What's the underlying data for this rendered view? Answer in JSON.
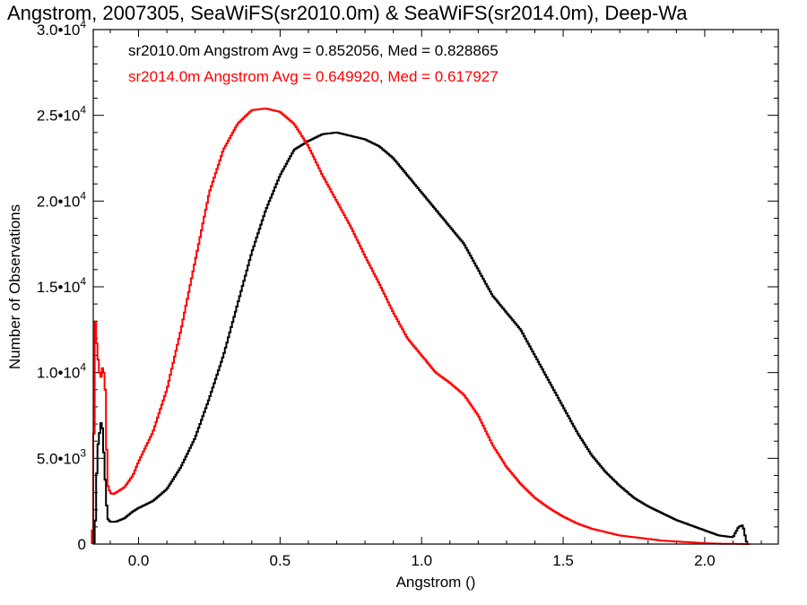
{
  "chart_data": {
    "type": "line",
    "title": "Angstrom, 2007305, SeaWiFS(sr2010.0m) & SeaWiFS(sr2014.0m), Deep-Wa",
    "xlabel": "Angstrom ()",
    "ylabel": "Number of Observations",
    "xlim": [
      -0.16,
      2.26
    ],
    "ylim": [
      0,
      30000
    ],
    "x_ticks": [
      {
        "value": 0.0,
        "label": "0.0"
      },
      {
        "value": 0.5,
        "label": "0.5"
      },
      {
        "value": 1.0,
        "label": "1.0"
      },
      {
        "value": 1.5,
        "label": "1.5"
      },
      {
        "value": 2.0,
        "label": "2.0"
      }
    ],
    "y_ticks": [
      {
        "value": 0,
        "mant": "0",
        "exp": ""
      },
      {
        "value": 5000,
        "mant": "5.0•10",
        "exp": "3"
      },
      {
        "value": 10000,
        "mant": "1.0•10",
        "exp": "4"
      },
      {
        "value": 15000,
        "mant": "1.5•10",
        "exp": "4"
      },
      {
        "value": 20000,
        "mant": "2.0•10",
        "exp": "4"
      },
      {
        "value": 25000,
        "mant": "2.5•10",
        "exp": "4"
      },
      {
        "value": 30000,
        "mant": "3.0•10",
        "exp": "4"
      }
    ],
    "step_histogram": true,
    "stats": [
      {
        "text": "sr2010.0m Angstrom Avg = 0.852056, Med = 0.828865",
        "color": "#000000"
      },
      {
        "text": "sr2014.0m Angstrom Avg = 0.649920, Med = 0.617927",
        "color": "#ff0000"
      }
    ],
    "series": [
      {
        "color": "#000000",
        "x": [
          -0.155,
          -0.145,
          -0.135,
          -0.13,
          -0.125,
          -0.12,
          -0.11,
          -0.1,
          -0.08,
          -0.05,
          -0.02,
          0.0,
          0.05,
          0.1,
          0.15,
          0.2,
          0.25,
          0.3,
          0.35,
          0.4,
          0.45,
          0.5,
          0.55,
          0.6,
          0.65,
          0.7,
          0.75,
          0.8,
          0.85,
          0.9,
          0.95,
          1.0,
          1.05,
          1.1,
          1.15,
          1.2,
          1.25,
          1.3,
          1.35,
          1.4,
          1.45,
          1.5,
          1.55,
          1.6,
          1.65,
          1.7,
          1.75,
          1.8,
          1.85,
          1.9,
          1.95,
          2.0,
          2.05,
          2.1,
          2.12,
          2.135,
          2.145,
          2.15
        ],
        "y": [
          0,
          5500,
          6800,
          7300,
          6200,
          4500,
          1500,
          1300,
          1300,
          1500,
          1900,
          2100,
          2500,
          3200,
          4500,
          6200,
          8500,
          11000,
          14000,
          17000,
          19500,
          21500,
          23000,
          23500,
          23900,
          24000,
          23800,
          23600,
          23200,
          22500,
          21500,
          20500,
          19500,
          18500,
          17500,
          16000,
          14500,
          13500,
          12500,
          11000,
          9500,
          8000,
          6500,
          5200,
          4200,
          3400,
          2700,
          2200,
          1800,
          1400,
          1100,
          800,
          500,
          400,
          1000,
          1100,
          300,
          0
        ]
      },
      {
        "color": "#ff0000",
        "x": [
          -0.165,
          -0.16,
          -0.155,
          -0.15,
          -0.145,
          -0.14,
          -0.135,
          -0.13,
          -0.125,
          -0.12,
          -0.115,
          -0.11,
          -0.1,
          -0.09,
          -0.08,
          -0.05,
          -0.02,
          0.0,
          0.05,
          0.1,
          0.15,
          0.2,
          0.25,
          0.3,
          0.35,
          0.4,
          0.45,
          0.5,
          0.55,
          0.6,
          0.65,
          0.7,
          0.75,
          0.8,
          0.85,
          0.9,
          0.95,
          1.0,
          1.05,
          1.1,
          1.15,
          1.2,
          1.25,
          1.3,
          1.35,
          1.4,
          1.45,
          1.5,
          1.55,
          1.6,
          1.65,
          1.7,
          1.75,
          1.8,
          1.85,
          1.9,
          1.95,
          2.0,
          2.05,
          2.1,
          2.15,
          2.16
        ],
        "y": [
          1200,
          400,
          12500,
          13400,
          10000,
          11500,
          8500,
          11000,
          9500,
          10500,
          7500,
          3500,
          3000,
          2900,
          3000,
          3300,
          4000,
          4800,
          6500,
          9000,
          12500,
          16500,
          20500,
          23000,
          24500,
          25300,
          25400,
          25200,
          24500,
          23200,
          21500,
          20000,
          18500,
          16800,
          15200,
          13500,
          12000,
          11000,
          10000,
          9400,
          8700,
          7500,
          5800,
          4500,
          3500,
          2700,
          2100,
          1600,
          1200,
          900,
          700,
          500,
          400,
          300,
          200,
          150,
          100,
          50,
          20,
          10,
          0,
          0
        ]
      }
    ]
  }
}
